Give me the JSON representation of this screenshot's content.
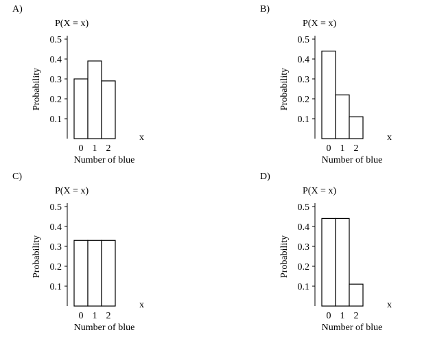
{
  "chart_data": [
    {
      "panel": "A)",
      "type": "bar",
      "title": "P(X = x)",
      "xlabel": "Number of blue",
      "ylabel": "Probability",
      "xvar": "x",
      "categories": [
        "0",
        "1",
        "2"
      ],
      "values": [
        0.3,
        0.39,
        0.29
      ],
      "yticks": [
        "0.1",
        "0.2",
        "0.3",
        "0.4",
        "0.5"
      ],
      "ylim": [
        0,
        0.5
      ]
    },
    {
      "panel": "B)",
      "type": "bar",
      "title": "P(X = x)",
      "xlabel": "Number of blue",
      "ylabel": "Probability",
      "xvar": "x",
      "categories": [
        "0",
        "1",
        "2"
      ],
      "values": [
        0.44,
        0.22,
        0.11
      ],
      "yticks": [
        "0.1",
        "0.2",
        "0.3",
        "0.4",
        "0.5"
      ],
      "ylim": [
        0,
        0.5
      ]
    },
    {
      "panel": "C)",
      "type": "bar",
      "title": "P(X = x)",
      "xlabel": "Number of blue",
      "ylabel": "Probability",
      "xvar": "x",
      "categories": [
        "0",
        "1",
        "2"
      ],
      "values": [
        0.33,
        0.33,
        0.33
      ],
      "yticks": [
        "0.1",
        "0.2",
        "0.3",
        "0.4",
        "0.5"
      ],
      "ylim": [
        0,
        0.5
      ]
    },
    {
      "panel": "D)",
      "type": "bar",
      "title": "P(X = x)",
      "xlabel": "Number of blue",
      "ylabel": "Probability",
      "xvar": "x",
      "categories": [
        "0",
        "1",
        "2"
      ],
      "values": [
        0.44,
        0.44,
        0.11
      ],
      "yticks": [
        "0.1",
        "0.2",
        "0.3",
        "0.4",
        "0.5"
      ],
      "ylim": [
        0,
        0.5
      ]
    }
  ]
}
